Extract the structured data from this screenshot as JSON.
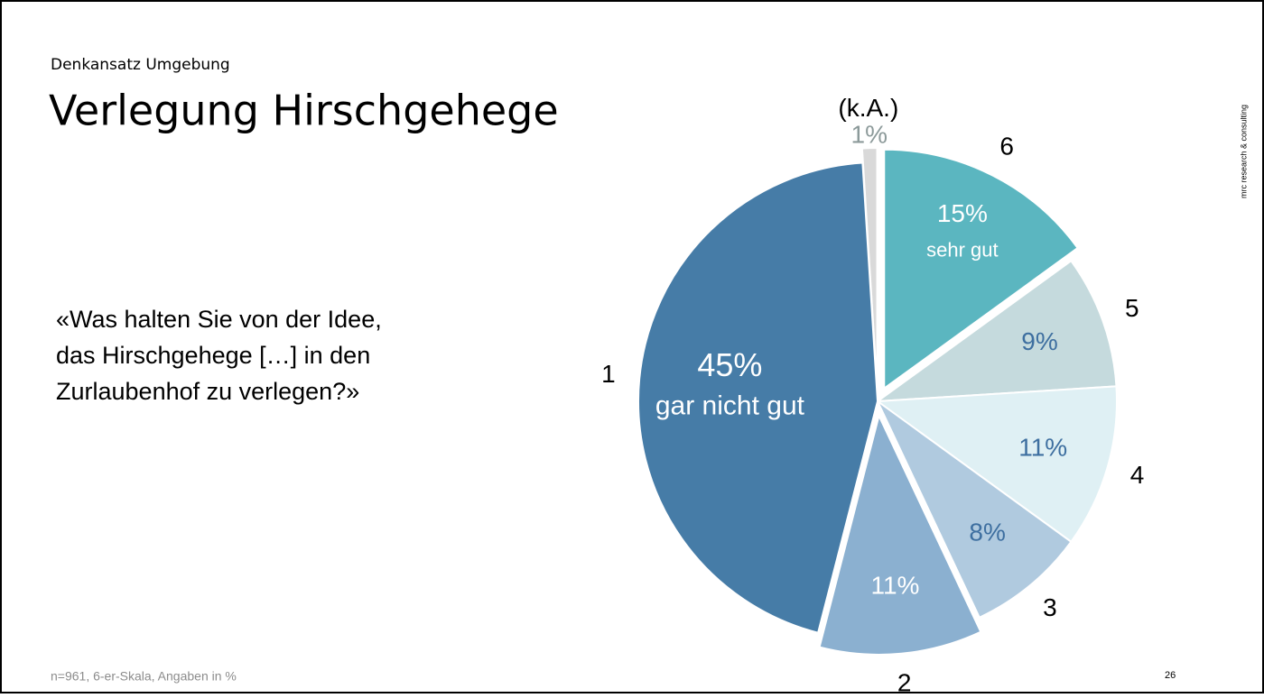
{
  "header": {
    "kicker": "Denkansatz Umgebung",
    "title": "Verlegung Hirschgehege"
  },
  "question": [
    "«Was halten Sie von der Idee,",
    "das Hirschgehege […] in den",
    "Zurlaubenhof zu verlegen?»"
  ],
  "footnote": "n=961, 6-er-Skala, Angaben in %",
  "page_number": "26",
  "side_note": "mrc research & consulting",
  "chart_data": {
    "type": "pie",
    "categories": [
      "6",
      "5",
      "4",
      "3",
      "2",
      "1",
      "(k.A.)"
    ],
    "values": [
      15,
      9,
      11,
      8,
      11,
      45,
      1
    ],
    "value_labels": [
      "15%",
      "9%",
      "11%",
      "8%",
      "11%",
      "45%",
      "1%"
    ],
    "descriptions": [
      "sehr gut",
      null,
      null,
      null,
      null,
      "gar nicht gut",
      null
    ],
    "colors": [
      "#5bb6c0",
      "#c5dadd",
      "#dff0f4",
      "#b0cadf",
      "#8bb0d0",
      "#467ca7",
      "#d9d9d9"
    ],
    "label_colors": [
      "#ffffff",
      "#3e6fa0",
      "#3e6fa0",
      "#3e6fa0",
      "#ffffff",
      "#ffffff",
      "#8c9a9a"
    ],
    "explode": [
      true,
      false,
      false,
      false,
      true,
      false,
      true
    ]
  }
}
